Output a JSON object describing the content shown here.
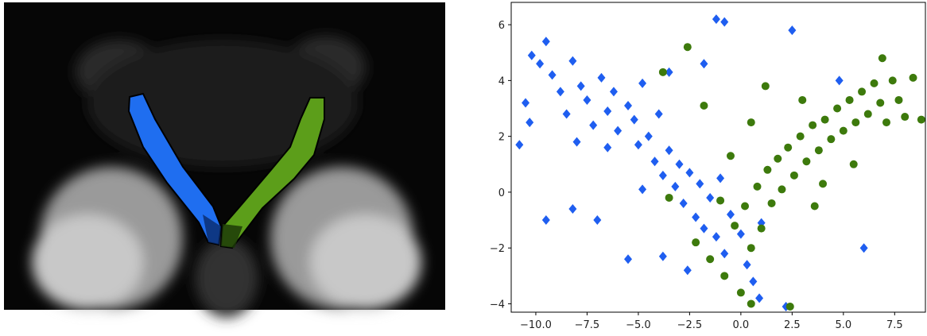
{
  "chart_data": {
    "type": "scatter",
    "xlim": [
      -11.2,
      9.0
    ],
    "ylim": [
      -4.3,
      6.8
    ],
    "xticks": [
      {
        "value": -10,
        "label": "−10.0"
      },
      {
        "value": -7.5,
        "label": "−7.5"
      },
      {
        "value": -5,
        "label": "−5.0"
      },
      {
        "value": -2.5,
        "label": "−2.5"
      },
      {
        "value": 0,
        "label": "0.0"
      },
      {
        "value": 2.5,
        "label": "2.5"
      },
      {
        "value": 5,
        "label": "5.0"
      },
      {
        "value": 7.5,
        "label": "7.5"
      }
    ],
    "yticks": [
      {
        "value": -4,
        "label": "−4"
      },
      {
        "value": -2,
        "label": "−2"
      },
      0,
      2,
      4,
      6
    ],
    "series": [
      {
        "color": "#1f5ef0",
        "marker": "diamond",
        "x": [
          -10.2,
          -9.8,
          -9.5,
          -10.5,
          -10.8,
          -10.3,
          -9.2,
          -8.8,
          -8.5,
          -8.2,
          -7.8,
          -7.5,
          -7.2,
          -6.8,
          -6.5,
          -6.2,
          -6.0,
          -5.5,
          -5.2,
          -5.0,
          -4.8,
          -4.5,
          -4.2,
          -4.0,
          -3.8,
          -3.5,
          -3.2,
          -3.0,
          -2.8,
          -2.5,
          -2.2,
          -2.0,
          -1.8,
          -1.5,
          -1.2,
          -1.0,
          -0.8,
          -0.5,
          0.0,
          0.3,
          0.6,
          1.0,
          -9.5,
          -8.2,
          -7.0,
          -5.5,
          -3.8,
          -1.2,
          -0.8,
          2.5,
          4.8,
          6.0,
          -6.5,
          -8.0,
          -3.5,
          -1.8,
          2.2,
          -4.8,
          -2.6,
          0.9
        ],
        "values": [
          4.9,
          4.6,
          5.4,
          3.2,
          1.7,
          2.5,
          4.2,
          3.6,
          2.8,
          4.7,
          3.8,
          3.3,
          2.4,
          4.1,
          2.9,
          3.6,
          2.2,
          3.1,
          2.6,
          1.7,
          3.9,
          2.0,
          1.1,
          2.8,
          0.6,
          1.5,
          0.2,
          1.0,
          -0.4,
          0.7,
          -0.9,
          0.3,
          -1.3,
          -0.2,
          -1.6,
          0.5,
          -2.2,
          -0.8,
          -1.5,
          -2.6,
          -3.2,
          -1.1,
          -1.0,
          -0.6,
          -1.0,
          -2.4,
          -2.3,
          6.2,
          6.1,
          5.8,
          4.0,
          -2.0,
          1.6,
          1.8,
          4.3,
          4.6,
          -4.1,
          0.1,
          -2.8,
          -3.8
        ]
      },
      {
        "color": "#3d7a0c",
        "marker": "circle",
        "x": [
          -2.6,
          -1.8,
          -3.8,
          -3.5,
          -2.2,
          -1.5,
          -0.8,
          -0.3,
          0.2,
          0.5,
          0.8,
          1.0,
          1.3,
          1.5,
          1.8,
          2.0,
          2.3,
          2.6,
          2.9,
          3.2,
          3.5,
          3.8,
          4.1,
          4.4,
          4.7,
          5.0,
          5.3,
          5.6,
          5.9,
          6.2,
          6.5,
          6.8,
          7.1,
          7.4,
          7.7,
          8.0,
          8.4,
          8.8,
          6.9,
          5.5,
          3.0,
          1.2,
          0.5,
          -0.5,
          0.0,
          2.4,
          0.5,
          3.6,
          4.0,
          -1.0
        ],
        "values": [
          5.2,
          3.1,
          4.3,
          -0.2,
          -1.8,
          -2.4,
          -3.0,
          -1.2,
          -0.5,
          -2.0,
          0.2,
          -1.3,
          0.8,
          -0.4,
          1.2,
          0.1,
          1.6,
          0.6,
          2.0,
          1.1,
          2.4,
          1.5,
          2.6,
          1.9,
          3.0,
          2.2,
          3.3,
          2.5,
          3.6,
          2.8,
          3.9,
          3.2,
          2.5,
          4.0,
          3.3,
          2.7,
          4.1,
          2.6,
          4.8,
          1.0,
          3.3,
          3.8,
          2.5,
          1.3,
          -3.6,
          -4.1,
          -4.0,
          -0.5,
          0.3,
          -0.3
        ]
      }
    ]
  }
}
